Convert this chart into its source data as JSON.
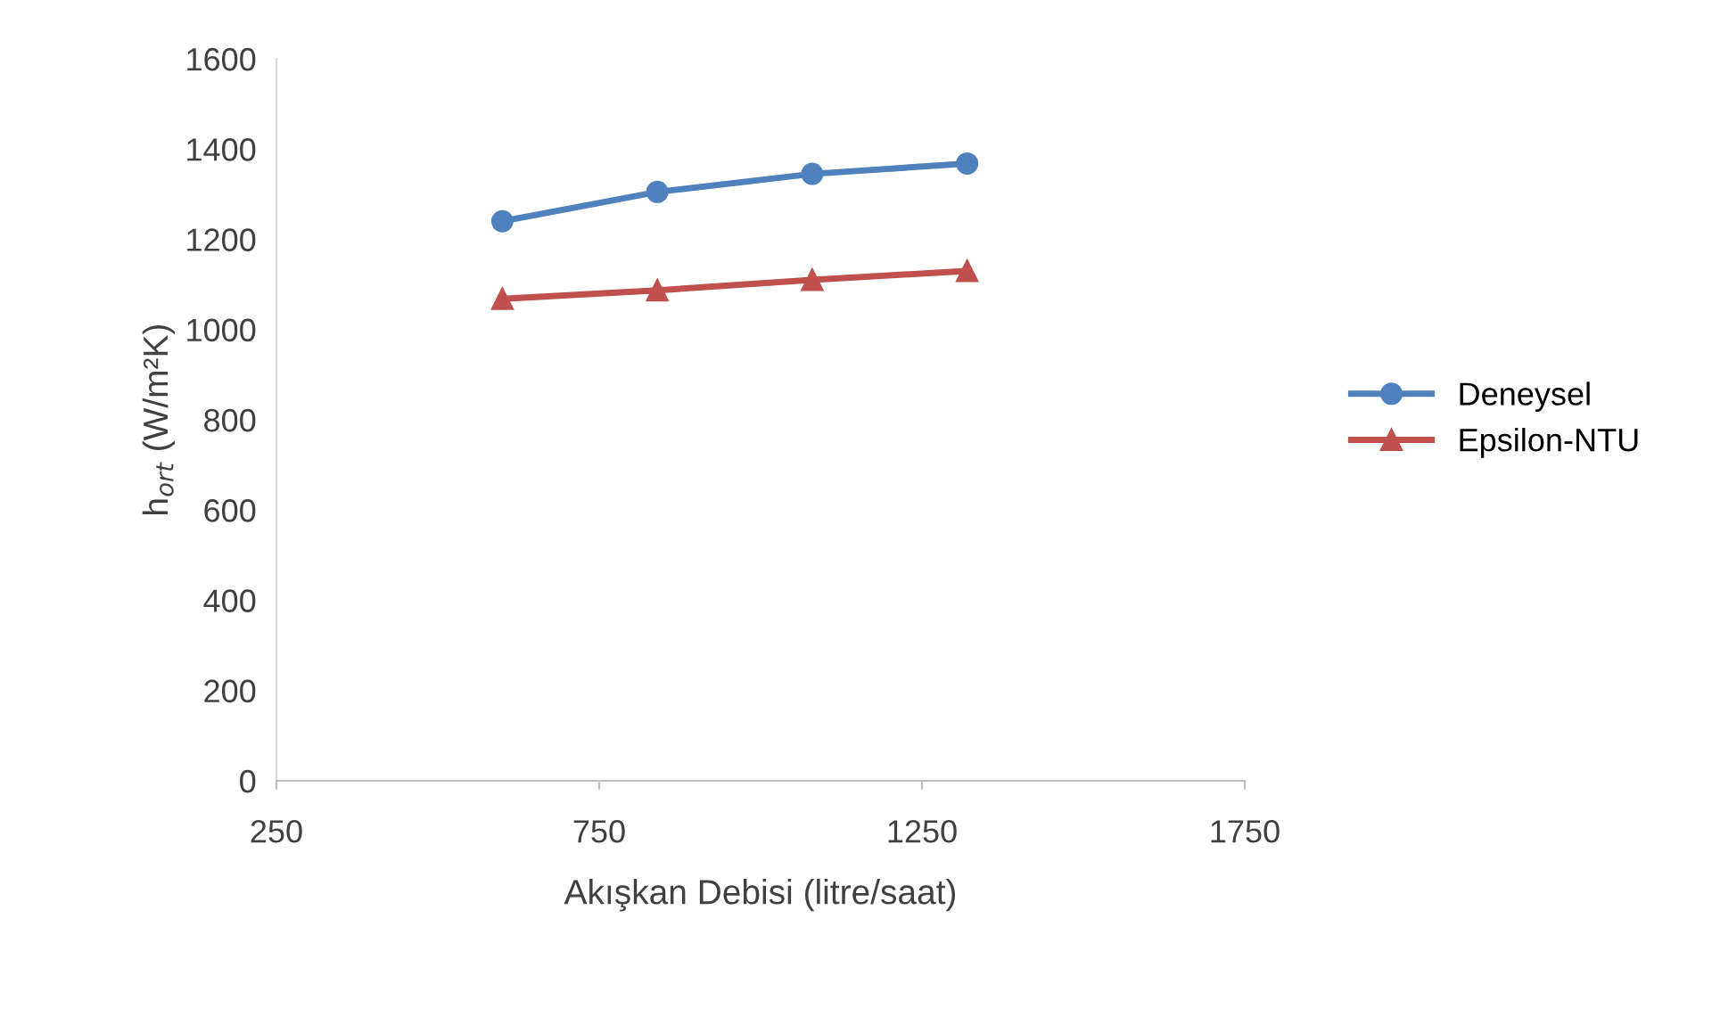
{
  "chart_data": {
    "type": "line",
    "xlabel": "Akışkan Debisi (litre/saat)",
    "ylabel": "h$_{ort}$ (W/m²K)",
    "x": [
      600,
      840,
      1080,
      1320
    ],
    "series": [
      {
        "name": "Deneysel",
        "color": "#4f81bd",
        "marker": "circle",
        "values": [
          1240,
          1305,
          1345,
          1368
        ]
      },
      {
        "name": "Epsilon-NTU",
        "color": "#c0504d",
        "marker": "triangle",
        "values": [
          1068,
          1087,
          1110,
          1130
        ]
      }
    ],
    "xlim": [
      250,
      1750
    ],
    "xticks": [
      250,
      750,
      1250,
      1750
    ],
    "ylim": [
      0,
      1600
    ],
    "yticks": [
      0,
      200,
      400,
      600,
      800,
      1000,
      1200,
      1400,
      1600
    ],
    "grid": false,
    "legend": "right",
    "line_style": "solid"
  }
}
